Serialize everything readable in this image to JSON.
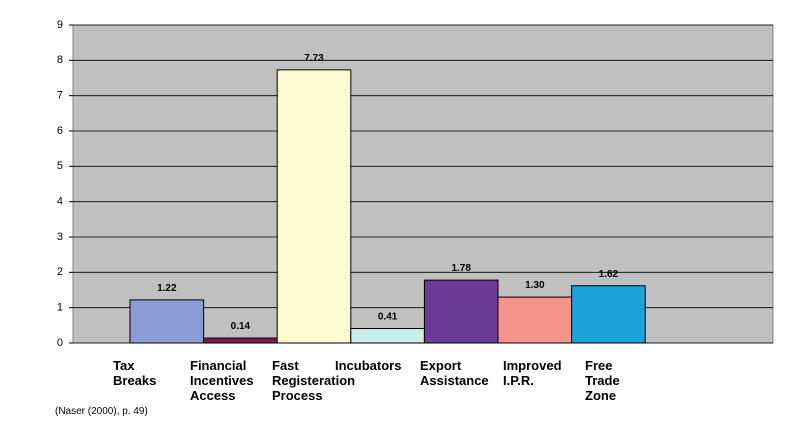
{
  "chart_data": {
    "type": "bar",
    "categories": [
      "Tax Breaks",
      "Financial Incentives Access",
      "Fast Registeration Process",
      "Incubators",
      "Export Assistance",
      "Improved I.P.R.",
      "Free Trade Zone"
    ],
    "values": [
      1.22,
      0.14,
      7.73,
      0.41,
      1.78,
      1.3,
      1.62
    ],
    "value_labels": [
      "1.22",
      "0.14",
      "7.73",
      "0.41",
      "1.78",
      "1.30",
      "1.62"
    ],
    "colors": [
      "#8b9bd6",
      "#7b1f4f",
      "#fdfbd2",
      "#c9eeea",
      "#6e3a9a",
      "#f7948a",
      "#1ba3d9"
    ],
    "ylim": [
      0,
      9
    ],
    "yticks": [
      0,
      1,
      2,
      3,
      4,
      5,
      6,
      7,
      8,
      9
    ],
    "grid": true,
    "source": "(Naser (2000), p. 49)"
  }
}
